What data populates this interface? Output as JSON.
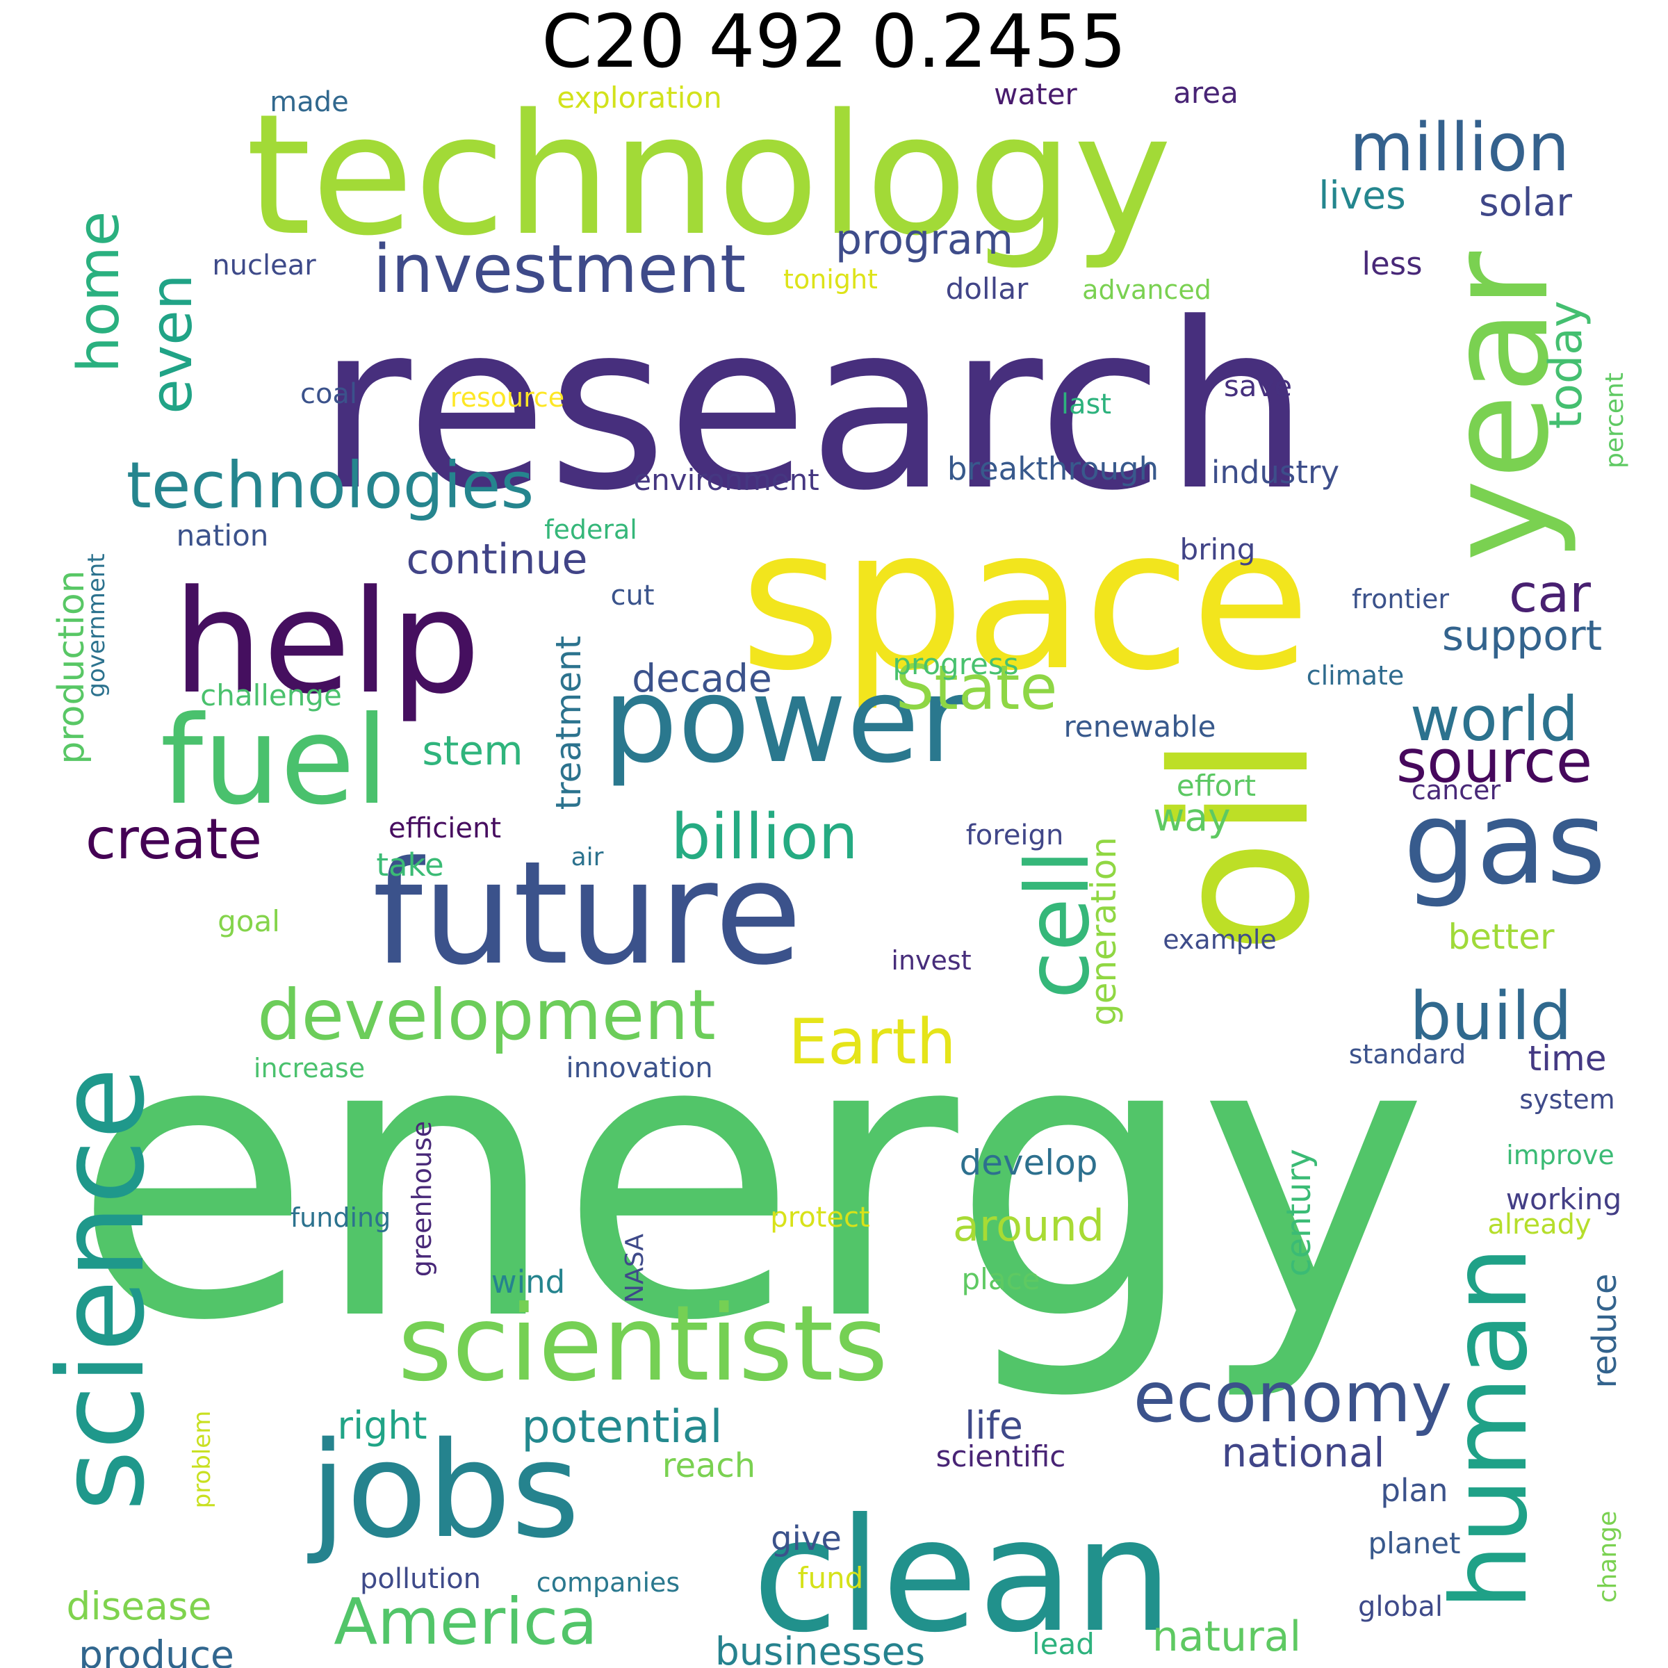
{
  "title": "C20 492 0.2455",
  "palette": {
    "deep_purple": "#440154",
    "indigo": "#482878",
    "slate_blue": "#3e4a89",
    "steel_blue": "#31688e",
    "teal_blue": "#26828e",
    "teal": "#1f9e89",
    "green": "#35b779",
    "light_green": "#6ece58",
    "lime": "#b5de2b",
    "yellow": "#fde725"
  },
  "words": [
    {
      "text": "energy",
      "color": "#52c569"
    },
    {
      "text": "research",
      "color": "#472f7d"
    },
    {
      "text": "space",
      "color": "#f2e51d"
    },
    {
      "text": "technology",
      "color": "#a2da37"
    },
    {
      "text": "oil",
      "color": "#bddf26"
    },
    {
      "text": "clean",
      "color": "#21918c"
    },
    {
      "text": "year",
      "color": "#7ad151"
    },
    {
      "text": "science",
      "color": "#1f988b"
    },
    {
      "text": "future",
      "color": "#3b528b"
    },
    {
      "text": "help",
      "color": "#450f5f"
    },
    {
      "text": "jobs",
      "color": "#25838e"
    },
    {
      "text": "human",
      "color": "#1fa187"
    },
    {
      "text": "power",
      "color": "#2a788e"
    },
    {
      "text": "gas",
      "color": "#375b8d"
    },
    {
      "text": "fuel",
      "color": "#4ac16d"
    },
    {
      "text": "scientists",
      "color": "#75d054"
    },
    {
      "text": "cell",
      "color": "#35b779"
    },
    {
      "text": "investment",
      "color": "#3e4a89"
    },
    {
      "text": "technologies",
      "color": "#25858e"
    },
    {
      "text": "million",
      "color": "#34618d"
    },
    {
      "text": "development",
      "color": "#6ccd5a"
    },
    {
      "text": "economy",
      "color": "#3b528b"
    },
    {
      "text": "billion",
      "color": "#25ab82"
    },
    {
      "text": "build",
      "color": "#30698e"
    },
    {
      "text": "America",
      "color": "#52c569"
    },
    {
      "text": "home",
      "color": "#2ab07f"
    },
    {
      "text": "even",
      "color": "#20a386"
    },
    {
      "text": "world",
      "color": "#2c728e"
    },
    {
      "text": "source",
      "color": "#46085c"
    },
    {
      "text": "Earth",
      "color": "#e5e419"
    },
    {
      "text": "State",
      "color": "#8ed645"
    },
    {
      "text": "create",
      "color": "#440154"
    },
    {
      "text": "car",
      "color": "#482071"
    },
    {
      "text": "program",
      "color": "#3e4c8a"
    },
    {
      "text": "today",
      "color": "#44bf70"
    },
    {
      "text": "potential",
      "color": "#23898e"
    },
    {
      "text": "continue",
      "color": "#414487"
    },
    {
      "text": "support",
      "color": "#33638d"
    },
    {
      "text": "solar",
      "color": "#3f4788"
    },
    {
      "text": "lives",
      "color": "#24868e"
    },
    {
      "text": "around",
      "color": "#a8db34"
    },
    {
      "text": "national",
      "color": "#404588"
    },
    {
      "text": "natural",
      "color": "#5ec962"
    },
    {
      "text": "life",
      "color": "#3e4989"
    },
    {
      "text": "businesses",
      "color": "#26828e"
    },
    {
      "text": "decade",
      "color": "#3b528b"
    },
    {
      "text": "treatment",
      "color": "#2c738e"
    },
    {
      "text": "generation",
      "color": "#90d743"
    },
    {
      "text": "production",
      "color": "#58c765"
    },
    {
      "text": "stem",
      "color": "#2fb47c"
    },
    {
      "text": "way",
      "color": "#5ec962"
    },
    {
      "text": "right",
      "color": "#20a486"
    },
    {
      "text": "disease",
      "color": "#7fd34e"
    },
    {
      "text": "produce",
      "color": "#31668e"
    },
    {
      "text": "develop",
      "color": "#2d708e"
    },
    {
      "text": "century",
      "color": "#3bbb75"
    },
    {
      "text": "reduce",
      "color": "#33638d"
    },
    {
      "text": "breakthrough",
      "color": "#38598c"
    },
    {
      "text": "industry",
      "color": "#3d4e8a"
    },
    {
      "text": "environment",
      "color": "#453781"
    },
    {
      "text": "better",
      "color": "#a0da39"
    },
    {
      "text": "time",
      "color": "#443983"
    },
    {
      "text": "working",
      "color": "#433e85"
    },
    {
      "text": "scientific",
      "color": "#482475"
    },
    {
      "text": "nation",
      "color": "#3b528b"
    },
    {
      "text": "efficient",
      "color": "#470d60"
    },
    {
      "text": "dollar",
      "color": "#414487"
    },
    {
      "text": "nuclear",
      "color": "#3e4a89"
    },
    {
      "text": "tonight",
      "color": "#dde318"
    },
    {
      "text": "advanced",
      "color": "#7ad151"
    },
    {
      "text": "less",
      "color": "#482878"
    },
    {
      "text": "coal",
      "color": "#3b528b"
    },
    {
      "text": "resource",
      "color": "#fde725"
    },
    {
      "text": "save",
      "color": "#46307e"
    },
    {
      "text": "last",
      "color": "#2db27d"
    },
    {
      "text": "made",
      "color": "#31688e"
    },
    {
      "text": "exploration",
      "color": "#d2e21b"
    },
    {
      "text": "water",
      "color": "#481b6d"
    },
    {
      "text": "area",
      "color": "#482475"
    },
    {
      "text": "percent",
      "color": "#5ec962"
    },
    {
      "text": "federal",
      "color": "#35b779"
    },
    {
      "text": "bring",
      "color": "#414487"
    },
    {
      "text": "government",
      "color": "#2c728e"
    },
    {
      "text": "cut",
      "color": "#3a538b"
    },
    {
      "text": "frontier",
      "color": "#3b528b"
    },
    {
      "text": "progress",
      "color": "#48c16e"
    },
    {
      "text": "climate",
      "color": "#2f6b8e"
    },
    {
      "text": "challenge",
      "color": "#4ac16d"
    },
    {
      "text": "renewable",
      "color": "#38598c"
    },
    {
      "text": "effort",
      "color": "#5cc863"
    },
    {
      "text": "cancer",
      "color": "#482878"
    },
    {
      "text": "air",
      "color": "#2c728e"
    },
    {
      "text": "foreign",
      "color": "#404688"
    },
    {
      "text": "take",
      "color": "#3bbb75"
    },
    {
      "text": "goal",
      "color": "#84d44b"
    },
    {
      "text": "invest",
      "color": "#472d7b"
    },
    {
      "text": "example",
      "color": "#3e4c8a"
    },
    {
      "text": "increase",
      "color": "#4ac16d"
    },
    {
      "text": "innovation",
      "color": "#3b528b"
    },
    {
      "text": "standard",
      "color": "#3b528b"
    },
    {
      "text": "system",
      "color": "#3e4a89"
    },
    {
      "text": "improve",
      "color": "#3bbb75"
    },
    {
      "text": "greenhouse",
      "color": "#482878"
    },
    {
      "text": "funding",
      "color": "#2c728e"
    },
    {
      "text": "protect",
      "color": "#d8e219"
    },
    {
      "text": "already",
      "color": "#b5de2b"
    },
    {
      "text": "wind",
      "color": "#25848e"
    },
    {
      "text": "NASA",
      "color": "#3e4989"
    },
    {
      "text": "place",
      "color": "#5ec962"
    },
    {
      "text": "reach",
      "color": "#7ad151"
    },
    {
      "text": "problem",
      "color": "#c8e020"
    },
    {
      "text": "plan",
      "color": "#3b528b"
    },
    {
      "text": "give",
      "color": "#3b528b"
    },
    {
      "text": "planet",
      "color": "#38598c"
    },
    {
      "text": "change",
      "color": "#7ad151"
    },
    {
      "text": "pollution",
      "color": "#3e4a89"
    },
    {
      "text": "companies",
      "color": "#2a788e"
    },
    {
      "text": "fund",
      "color": "#d5e21a"
    },
    {
      "text": "global",
      "color": "#3e4a89"
    },
    {
      "text": "lead",
      "color": "#2db27d"
    }
  ]
}
